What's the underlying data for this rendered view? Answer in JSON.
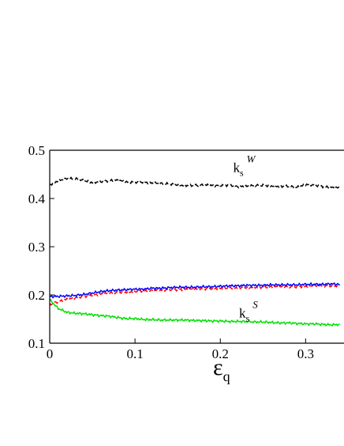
{
  "chart_data": {
    "type": "line",
    "xlabel": {
      "main": "ε",
      "sub": "q"
    },
    "ylabel": "",
    "xlim": [
      0,
      0.345
    ],
    "ylim": [
      0.1,
      0.5
    ],
    "x_ticks": [
      0,
      0.1,
      0.2,
      0.3
    ],
    "x_tick_labels": [
      "0",
      "0.1",
      "0.2",
      "0.3"
    ],
    "y_ticks": [
      0.1,
      0.2,
      0.3,
      0.4,
      0.5
    ],
    "y_tick_labels": [
      "0.1",
      "0.2",
      "0.3",
      "0.4",
      "0.5"
    ],
    "grid": false,
    "legend": "none",
    "annotations": [
      {
        "id": "ks-w",
        "main": "k",
        "sub": "s",
        "sup": "W",
        "x": 0.215,
        "y": 0.455
      },
      {
        "id": "ks-s",
        "main": "k",
        "sub": "s",
        "sup": "S",
        "x": 0.222,
        "y": 0.153
      }
    ],
    "series": [
      {
        "color": "#000000",
        "style": "dashed",
        "x": [
          0,
          0.01,
          0.02,
          0.03,
          0.04,
          0.05,
          0.06,
          0.07,
          0.08,
          0.09,
          0.1,
          0.11,
          0.12,
          0.13,
          0.14,
          0.15,
          0.16,
          0.17,
          0.18,
          0.19,
          0.2,
          0.21,
          0.22,
          0.23,
          0.24,
          0.25,
          0.26,
          0.27,
          0.28,
          0.29,
          0.3,
          0.31,
          0.32,
          0.33,
          0.34
        ],
        "y": [
          0.428,
          0.437,
          0.441,
          0.441,
          0.437,
          0.433,
          0.435,
          0.437,
          0.438,
          0.434,
          0.434,
          0.434,
          0.432,
          0.431,
          0.43,
          0.428,
          0.427,
          0.427,
          0.428,
          0.427,
          0.427,
          0.428,
          0.425,
          0.425,
          0.427,
          0.427,
          0.426,
          0.425,
          0.425,
          0.423,
          0.429,
          0.428,
          0.425,
          0.423,
          0.422
        ]
      },
      {
        "color": "#ff0000",
        "style": "dashed",
        "x": [
          0,
          0.01,
          0.02,
          0.03,
          0.04,
          0.05,
          0.06,
          0.07,
          0.08,
          0.09,
          0.1,
          0.11,
          0.12,
          0.13,
          0.14,
          0.15,
          0.16,
          0.17,
          0.18,
          0.19,
          0.2,
          0.21,
          0.22,
          0.23,
          0.24,
          0.25,
          0.26,
          0.27,
          0.28,
          0.29,
          0.3,
          0.31,
          0.32,
          0.33,
          0.34
        ],
        "y": [
          0.18,
          0.186,
          0.191,
          0.194,
          0.197,
          0.2,
          0.202,
          0.204,
          0.205,
          0.206,
          0.207,
          0.208,
          0.209,
          0.21,
          0.211,
          0.211,
          0.212,
          0.212,
          0.213,
          0.213,
          0.214,
          0.214,
          0.214,
          0.215,
          0.216,
          0.216,
          0.217,
          0.217,
          0.217,
          0.217,
          0.218,
          0.219,
          0.219,
          0.218,
          0.219
        ]
      },
      {
        "color": "#0000ff",
        "style": "solid",
        "x": [
          0,
          0.01,
          0.02,
          0.03,
          0.04,
          0.05,
          0.06,
          0.07,
          0.08,
          0.09,
          0.1,
          0.11,
          0.12,
          0.13,
          0.14,
          0.15,
          0.16,
          0.17,
          0.18,
          0.19,
          0.2,
          0.21,
          0.22,
          0.23,
          0.24,
          0.25,
          0.26,
          0.27,
          0.28,
          0.29,
          0.3,
          0.31,
          0.32,
          0.33,
          0.34
        ],
        "y": [
          0.197,
          0.197,
          0.198,
          0.199,
          0.201,
          0.204,
          0.207,
          0.209,
          0.21,
          0.211,
          0.212,
          0.212,
          0.214,
          0.214,
          0.215,
          0.216,
          0.216,
          0.216,
          0.217,
          0.217,
          0.218,
          0.219,
          0.219,
          0.22,
          0.22,
          0.22,
          0.221,
          0.221,
          0.221,
          0.221,
          0.222,
          0.222,
          0.222,
          0.223,
          0.222
        ]
      },
      {
        "color": "#00e000",
        "style": "solid",
        "x": [
          0,
          0.01,
          0.02,
          0.03,
          0.04,
          0.05,
          0.06,
          0.07,
          0.08,
          0.09,
          0.1,
          0.11,
          0.12,
          0.13,
          0.14,
          0.15,
          0.16,
          0.17,
          0.18,
          0.19,
          0.2,
          0.21,
          0.22,
          0.23,
          0.24,
          0.25,
          0.26,
          0.27,
          0.28,
          0.29,
          0.3,
          0.31,
          0.32,
          0.33,
          0.34
        ],
        "y": [
          0.19,
          0.172,
          0.164,
          0.162,
          0.161,
          0.159,
          0.157,
          0.156,
          0.153,
          0.151,
          0.151,
          0.149,
          0.149,
          0.148,
          0.148,
          0.148,
          0.148,
          0.147,
          0.147,
          0.146,
          0.146,
          0.145,
          0.145,
          0.145,
          0.144,
          0.144,
          0.143,
          0.142,
          0.142,
          0.141,
          0.14,
          0.14,
          0.139,
          0.138,
          0.139
        ]
      }
    ]
  }
}
